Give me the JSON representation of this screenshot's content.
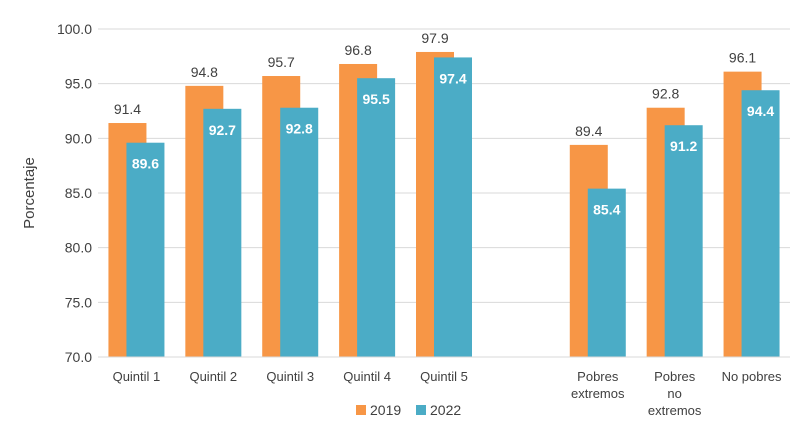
{
  "chart_data": {
    "type": "bar",
    "title": "",
    "xlabel": "",
    "ylabel": "Porcentaje",
    "ylim": [
      70,
      100
    ],
    "yticks": [
      "70.0",
      "75.0",
      "80.0",
      "85.0",
      "90.0",
      "95.0",
      "100.0"
    ],
    "grid": true,
    "legend_position": "bottom",
    "categories": [
      [
        "Quintil 1"
      ],
      [
        "Quintil 2"
      ],
      [
        "Quintil 3"
      ],
      [
        "Quintil 4"
      ],
      [
        "Quintil 5"
      ],
      [],
      [
        "Pobres",
        "extremos"
      ],
      [
        "Pobres",
        "no",
        "extremos"
      ],
      [
        "No pobres"
      ]
    ],
    "series": [
      {
        "name": "2019",
        "color": "#F79646",
        "values": [
          91.4,
          94.8,
          95.7,
          96.8,
          97.9,
          null,
          89.4,
          92.8,
          96.1
        ],
        "labels": [
          "91.4",
          "94.8",
          "95.7",
          "96.8",
          "97.9",
          null,
          "89.4",
          "92.8",
          "96.1"
        ]
      },
      {
        "name": "2022",
        "color": "#4BACC6",
        "values": [
          89.6,
          92.7,
          92.8,
          95.5,
          97.4,
          null,
          85.4,
          91.2,
          94.4
        ],
        "labels": [
          "89.6",
          "92.7",
          "92.8",
          "95.5",
          "97.4",
          null,
          "85.4",
          "91.2",
          "94.4"
        ]
      }
    ]
  }
}
